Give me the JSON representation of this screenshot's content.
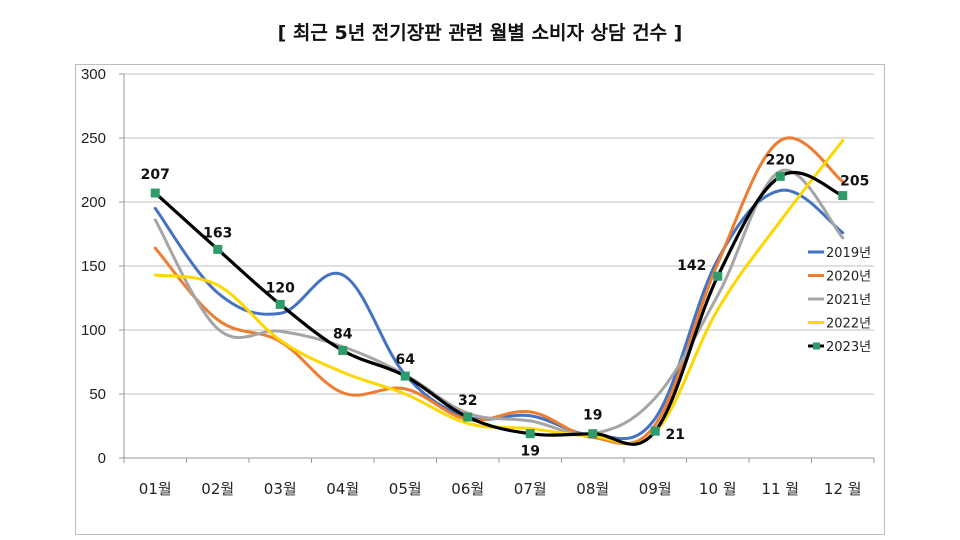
{
  "chart_data": {
    "type": "line",
    "title": "[ 최근 5년 전기장판 관련 월별 소비자 상담 건수 ]",
    "xlabel": "",
    "ylabel": "",
    "ylim": [
      0,
      300
    ],
    "yticks": [
      0,
      50,
      100,
      150,
      200,
      250,
      300
    ],
    "grid": true,
    "legend_position": "right",
    "categories": [
      "01월",
      "02월",
      "03월",
      "04월",
      "05월",
      "06월",
      "07월",
      "08월",
      "09월",
      "10 월",
      "11 월",
      "12 월"
    ],
    "series": [
      {
        "name": "2019년",
        "color": "#4472C4",
        "values": [
          195,
          129,
          113,
          143,
          65,
          32,
          33,
          18,
          31,
          155,
          209,
          176
        ]
      },
      {
        "name": "2020년",
        "color": "#ED7D31",
        "values": [
          164,
          108,
          91,
          51,
          54,
          30,
          36,
          16,
          26,
          152,
          248,
          216
        ]
      },
      {
        "name": "2021년",
        "color": "#A5A5A5",
        "values": [
          186,
          101,
          99,
          87,
          65,
          35,
          29,
          19,
          47,
          127,
          224,
          172
        ]
      },
      {
        "name": "2022년",
        "color": "#FFD700",
        "values": [
          143,
          135,
          92,
          67,
          50,
          27,
          23,
          17,
          20,
          116,
          185,
          248
        ]
      },
      {
        "name": "2023년",
        "color": "#000000",
        "marker_color": "#2E9B6A",
        "values": [
          207,
          163,
          120,
          84,
          64,
          32,
          19,
          19,
          21,
          142,
          220,
          205
        ],
        "data_labels": true
      }
    ]
  }
}
